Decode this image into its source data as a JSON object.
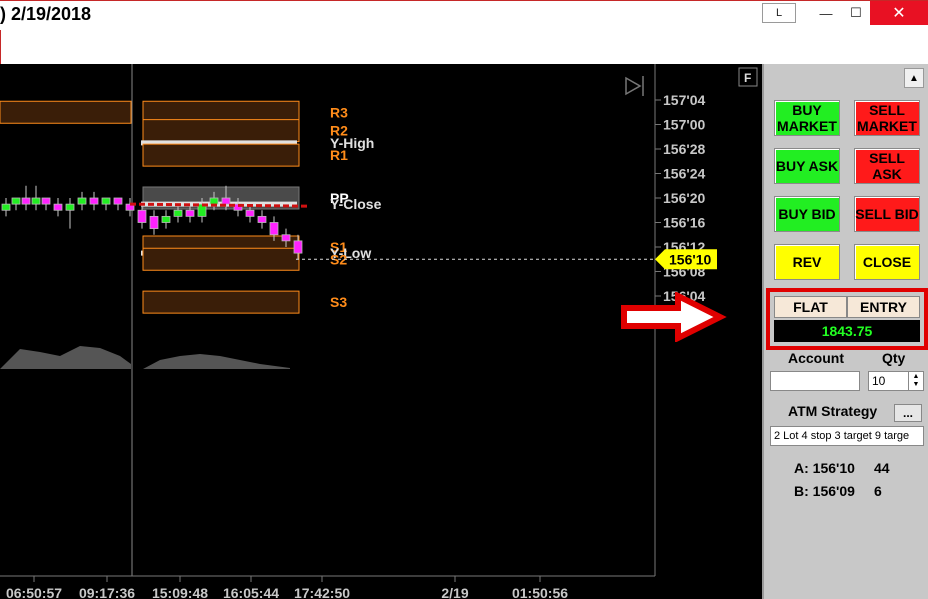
{
  "window": {
    "title": ") 2/19/2018",
    "lock_label": "L",
    "minimize_glyph": "—",
    "maximize_glyph": "☐",
    "close_glyph": "✕"
  },
  "chart": {
    "f_label": "F",
    "price_ticks": [
      "157'04",
      "157'00",
      "156'28",
      "156'24",
      "156'20",
      "156'16",
      "156'12",
      "156'08",
      "156'04",
      "156'00"
    ],
    "current_price": "156'10",
    "time_ticks": [
      "06:50:57",
      "09:17:36",
      "15:09:48",
      "16:05:44",
      "17:42:50",
      "2/19",
      "01:50:56"
    ],
    "levels": [
      {
        "name": "R3",
        "price": 157.0625,
        "color": "#ff8c1a"
      },
      {
        "name": "R2",
        "price": 156.96875,
        "color": "#ff8c1a"
      },
      {
        "name": "Y-High",
        "price": 156.90625,
        "color": "#e0e0e0"
      },
      {
        "name": "R1",
        "price": 156.84375,
        "color": "#ff8c1a"
      },
      {
        "name": "PP",
        "price": 156.625,
        "color": "#ffffff"
      },
      {
        "name": "Y-Close",
        "price": 156.59375,
        "color": "#e0e0e0"
      },
      {
        "name": "S1",
        "price": 156.375,
        "color": "#ff8c1a"
      },
      {
        "name": "Y-Low",
        "price": 156.34375,
        "color": "#e0e0e0"
      },
      {
        "name": "S2",
        "price": 156.3125,
        "color": "#ff8c1a"
      },
      {
        "name": "S3",
        "price": 156.09375,
        "color": "#ff8c1a"
      }
    ]
  },
  "order_panel": {
    "buttons": [
      {
        "id": "buy-market",
        "label": "BUY\nMARKET",
        "color": "green"
      },
      {
        "id": "sell-market",
        "label": "SELL\nMARKET",
        "color": "red"
      },
      {
        "id": "buy-ask",
        "label": "BUY ASK",
        "color": "green"
      },
      {
        "id": "sell-ask",
        "label": "SELL\nASK",
        "color": "red"
      },
      {
        "id": "buy-bid",
        "label": "BUY BID",
        "color": "green"
      },
      {
        "id": "sell-bid",
        "label": "SELL BID",
        "color": "red"
      },
      {
        "id": "rev",
        "label": "REV",
        "color": "yellow"
      },
      {
        "id": "close",
        "label": "CLOSE",
        "color": "yellow"
      }
    ],
    "position": {
      "status": "FLAT",
      "entry_label": "ENTRY",
      "entry_value": "1843.75"
    },
    "account_label": "Account",
    "qty_label": "Qty",
    "qty_value": "10",
    "atm_label": "ATM Strategy",
    "atm_button": "...",
    "atm_value": "2 Lot 4 stop 3 target 9 targe",
    "ask": {
      "label": "A: 156'10",
      "size": "44"
    },
    "bid": {
      "label": "B: 156'09",
      "size": "6"
    }
  },
  "colors": {
    "level_orange": "#ff8c1a",
    "level_fill": "#3a1e08",
    "current_price_badge": "#ffff00",
    "highlight_red": "#e00000"
  }
}
